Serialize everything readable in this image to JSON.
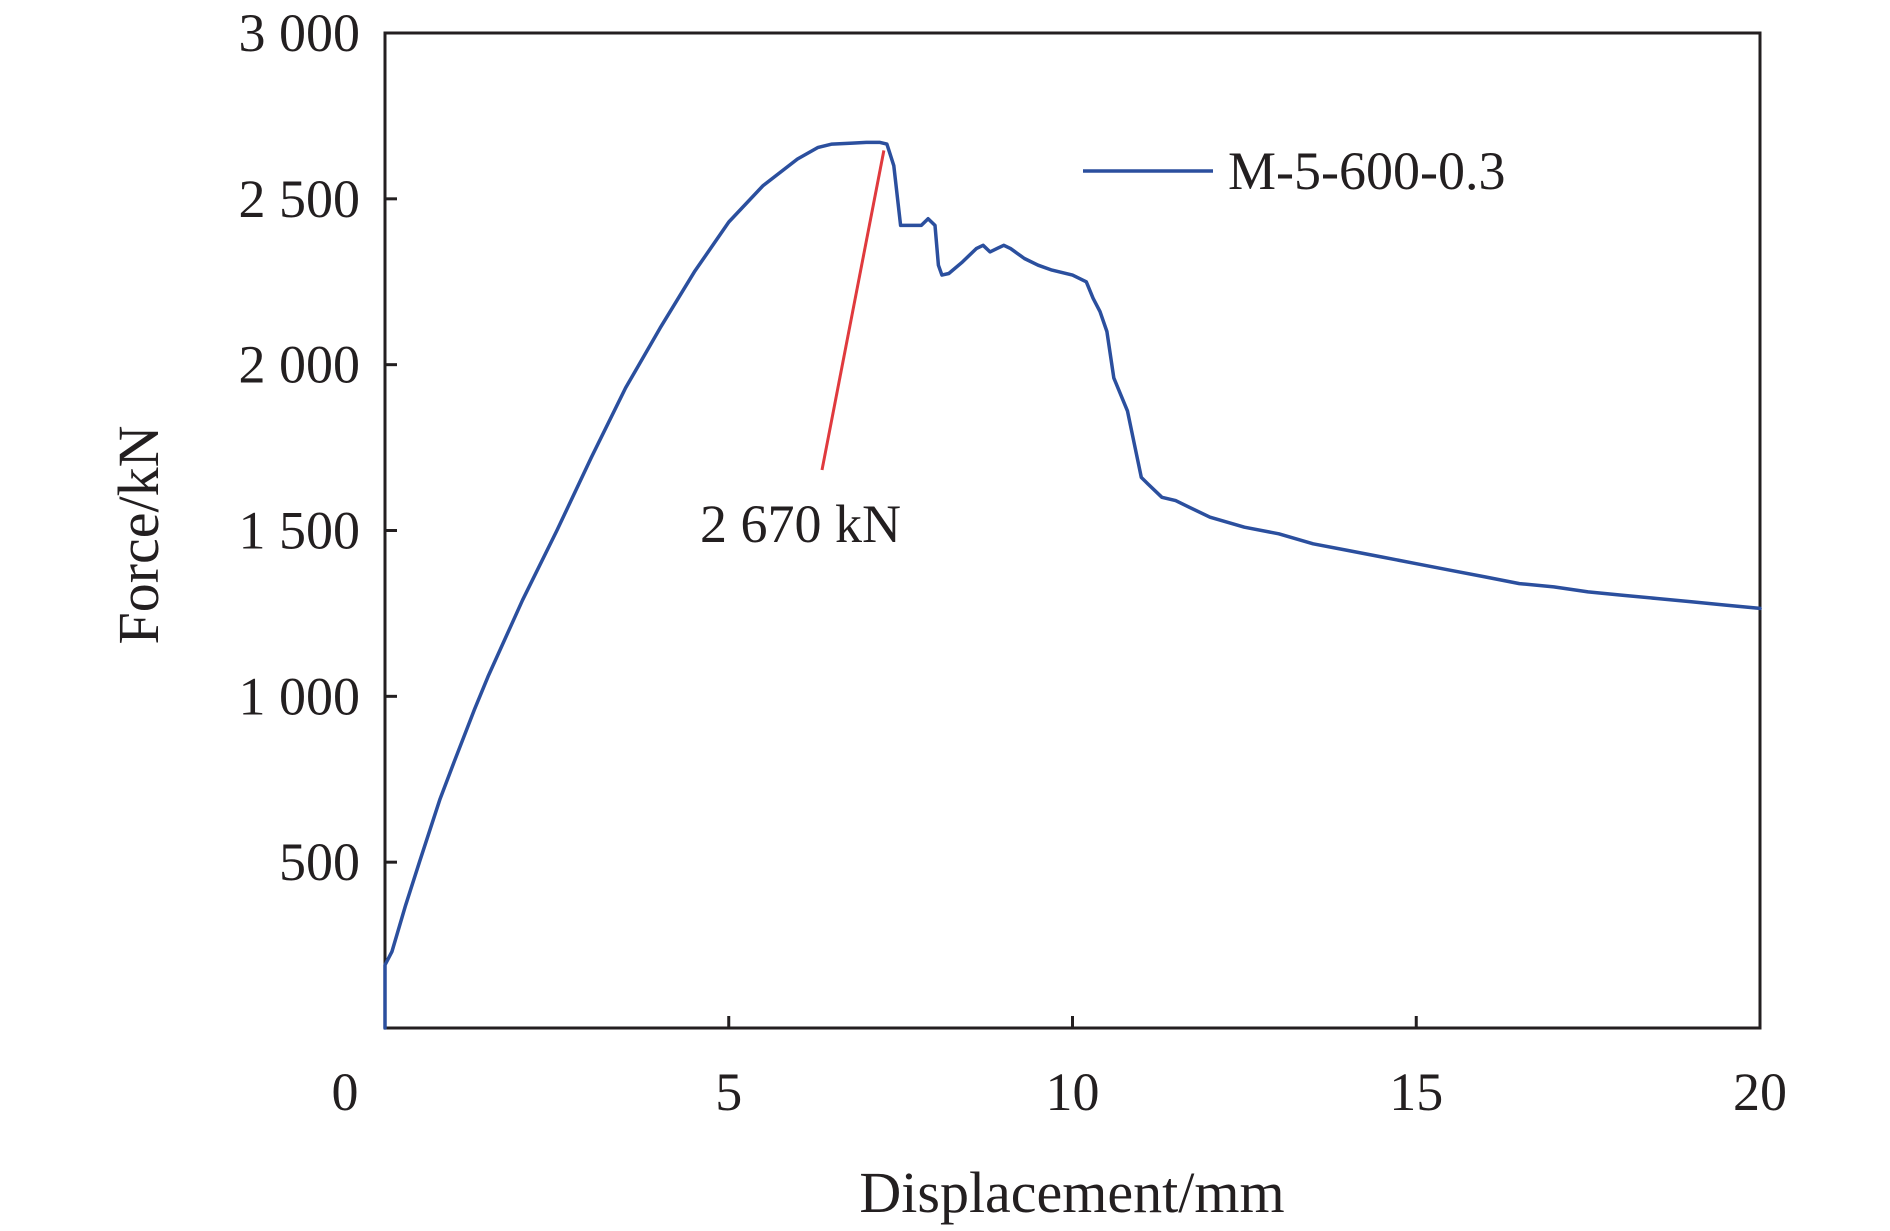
{
  "chart_data": {
    "type": "line",
    "title": "",
    "xlabel": "Displacement/mm",
    "ylabel": "Force/kN",
    "xlim": [
      0,
      20
    ],
    "ylim": [
      0,
      3000
    ],
    "x_ticks": [
      0,
      5,
      10,
      15,
      20
    ],
    "x_tick_labels": [
      "0",
      "5",
      "10",
      "15",
      "20"
    ],
    "y_ticks": [
      500,
      1000,
      1500,
      2000,
      2500,
      3000
    ],
    "y_tick_labels": [
      "500",
      "1 000",
      "1 500",
      "2 000",
      "2 500",
      "3 000"
    ],
    "grid": false,
    "legend_position": "top-right",
    "series": [
      {
        "name": "M-5-600-0.3",
        "color": "#2b4f9e",
        "x": [
          0,
          0,
          0.1,
          0.3,
          0.5,
          0.8,
          1.0,
          1.3,
          1.5,
          2.0,
          2.5,
          3.0,
          3.5,
          4.0,
          4.5,
          5.0,
          5.5,
          6.0,
          6.3,
          6.5,
          6.8,
          7.0,
          7.2,
          7.3,
          7.4,
          7.5,
          7.6,
          7.8,
          7.9,
          8.0,
          8.05,
          8.1,
          8.2,
          8.4,
          8.6,
          8.7,
          8.8,
          8.9,
          9.0,
          9.1,
          9.3,
          9.5,
          9.7,
          10.0,
          10.2,
          10.3,
          10.4,
          10.5,
          10.6,
          10.8,
          10.9,
          11.0,
          11.1,
          11.3,
          11.5,
          11.7,
          12.0,
          12.5,
          13.0,
          13.5,
          14.0,
          14.5,
          15.0,
          15.5,
          16.0,
          16.5,
          17.0,
          17.5,
          18.0,
          18.5,
          19.0,
          19.5,
          20.0
        ],
        "y": [
          0,
          190,
          230,
          370,
          500,
          690,
          800,
          960,
          1060,
          1290,
          1500,
          1720,
          1930,
          2110,
          2280,
          2430,
          2540,
          2620,
          2655,
          2665,
          2668,
          2670,
          2670,
          2665,
          2600,
          2420,
          2420,
          2420,
          2440,
          2420,
          2300,
          2270,
          2275,
          2310,
          2350,
          2360,
          2340,
          2350,
          2360,
          2350,
          2320,
          2300,
          2285,
          2270,
          2250,
          2200,
          2160,
          2100,
          1960,
          1860,
          1760,
          1660,
          1640,
          1600,
          1590,
          1570,
          1540,
          1510,
          1490,
          1460,
          1440,
          1420,
          1400,
          1380,
          1360,
          1340,
          1330,
          1315,
          1305,
          1295,
          1285,
          1275,
          1265
        ]
      }
    ],
    "annotations": [
      {
        "text": "2 670 kN",
        "x": 7.3,
        "y": 2670,
        "color": "#e03a3e"
      }
    ]
  }
}
